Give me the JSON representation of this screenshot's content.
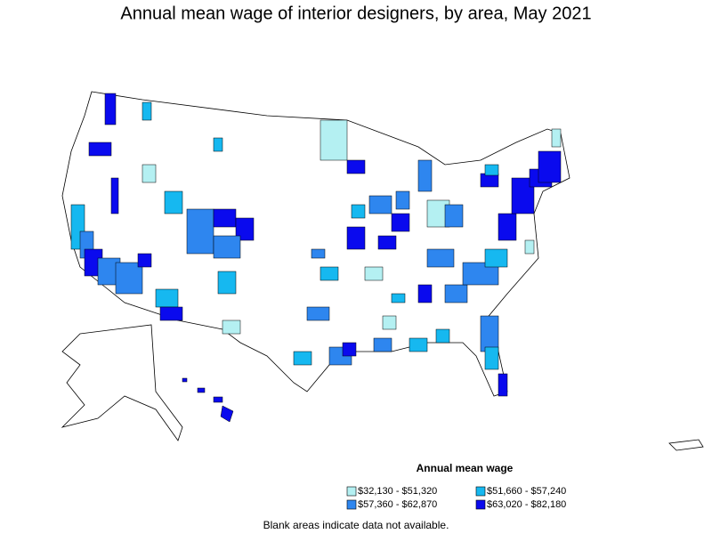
{
  "title": "Annual mean wage of interior designers, by area, May 2021",
  "legend": {
    "title": "Annual mean wage",
    "items": [
      {
        "label": "$32,130 - $51,320",
        "color": "#b4f0f2"
      },
      {
        "label": "$51,660 - $57,240",
        "color": "#16b8f0"
      },
      {
        "label": "$57,360 - $62,870",
        "color": "#2e86ef"
      },
      {
        "label": "$63,020 - $82,180",
        "color": "#0a0aee"
      }
    ]
  },
  "note": "Blank areas indicate data not available."
}
